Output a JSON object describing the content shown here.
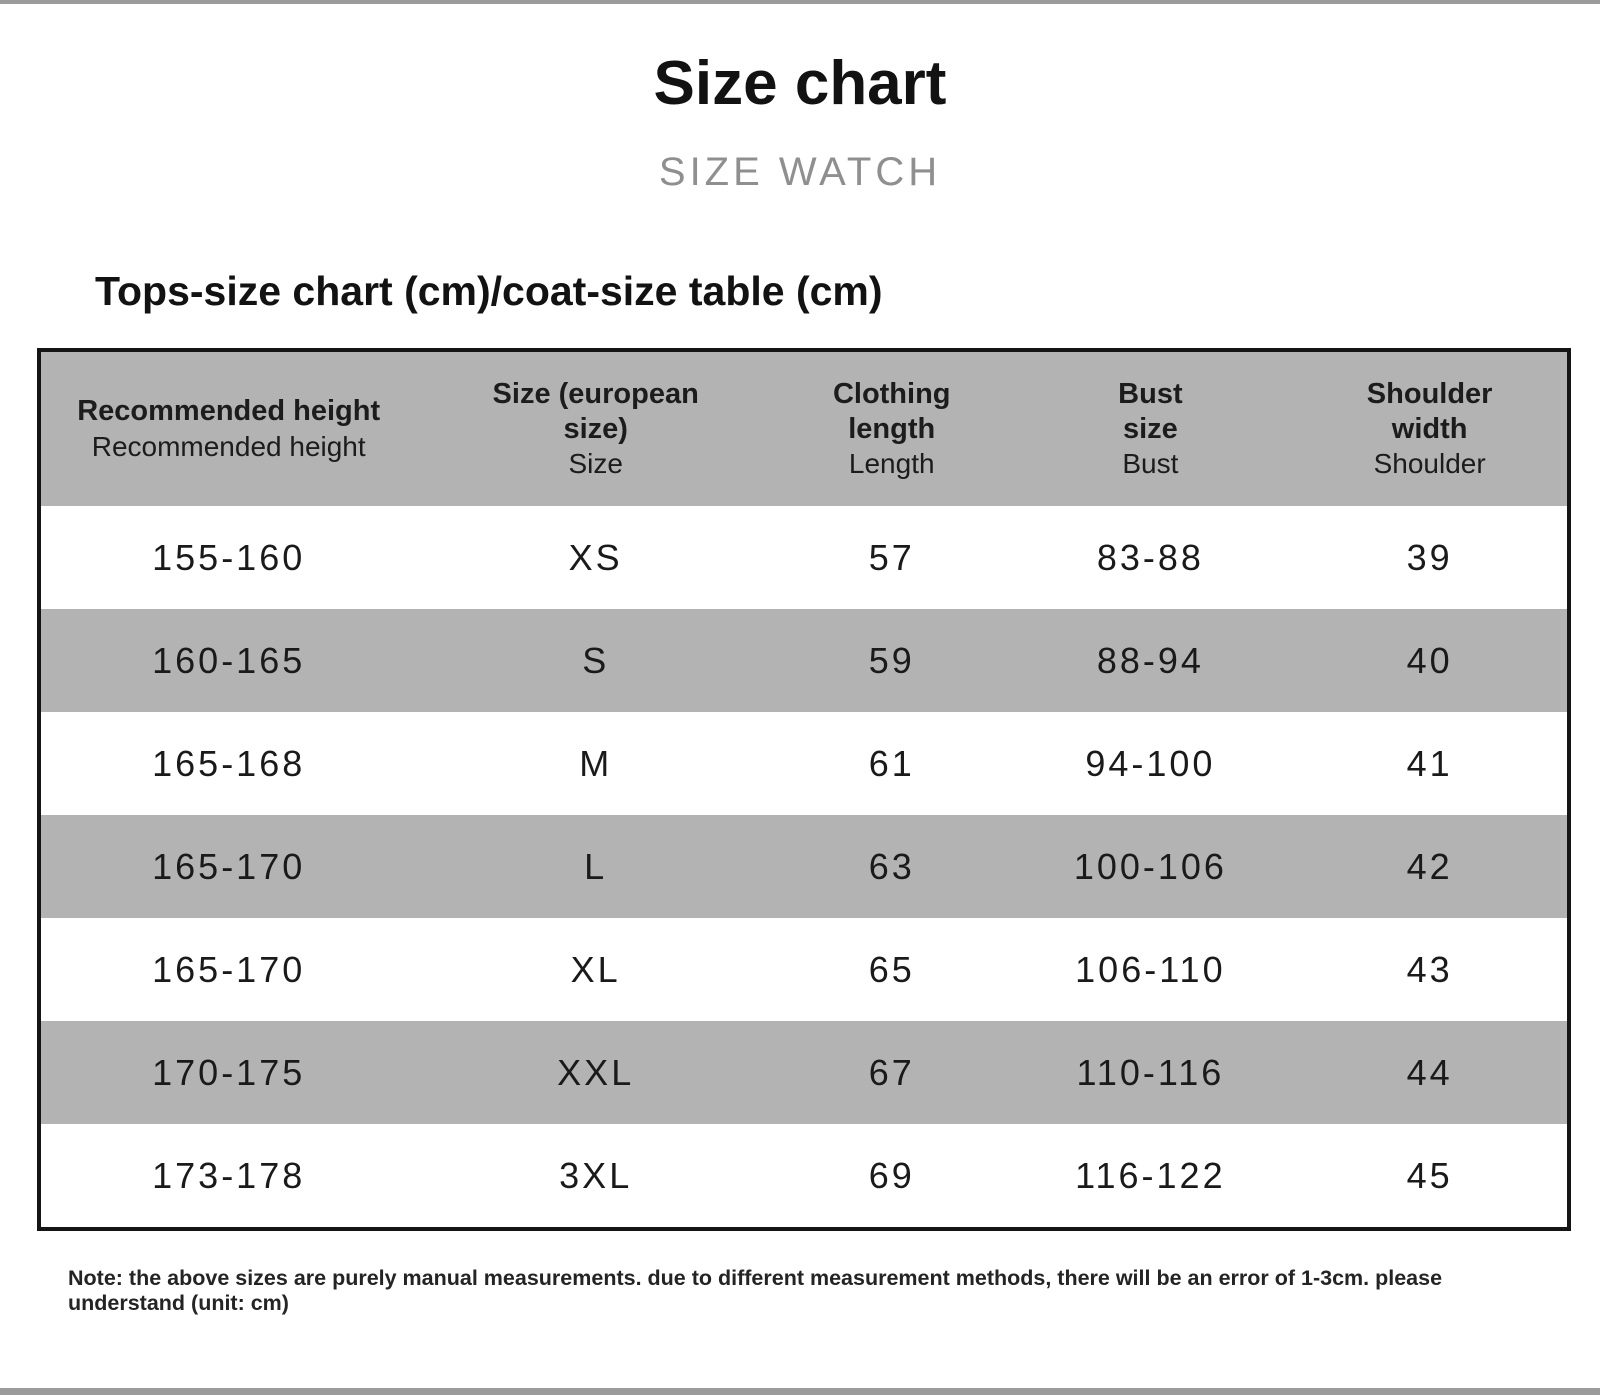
{
  "page": {
    "title": "Size chart",
    "subtitle": "SIZE WATCH",
    "section_heading": "Tops-size chart (cm)/coat-size table (cm)",
    "note": "Note: the above sizes are purely manual measurements. due to different measurement methods, there will be an error of 1-3cm. please understand (unit: cm)"
  },
  "table": {
    "columns": [
      {
        "label": "Recommended height",
        "sublabel": "Recommended height"
      },
      {
        "label": "Size (european\nsize)",
        "sublabel": "Size"
      },
      {
        "label": "Clothing\nlength",
        "sublabel": "Length"
      },
      {
        "label": "Bust\nsize",
        "sublabel": "Bust"
      },
      {
        "label": "Shoulder\nwidth",
        "sublabel": "Shoulder"
      }
    ],
    "rows": [
      [
        "155-160",
        "XS",
        "57",
        "83-88",
        "39"
      ],
      [
        "160-165",
        "S",
        "59",
        "88-94",
        "40"
      ],
      [
        "165-168",
        "M",
        "61",
        "94-100",
        "41"
      ],
      [
        "165-170",
        "L",
        "63",
        "100-106",
        "42"
      ],
      [
        "165-170",
        "XL",
        "65",
        "106-110",
        "43"
      ],
      [
        "170-175",
        "XXL",
        "67",
        "110-116",
        "44"
      ],
      [
        "173-178",
        "3XL",
        "69",
        "116-122",
        "45"
      ]
    ]
  },
  "colors": {
    "row_gray": "#b3b3b3",
    "border_black": "#151515",
    "subtitle_gray": "#8f8f8f",
    "edge_bar_gray": "#9b9b9b"
  }
}
